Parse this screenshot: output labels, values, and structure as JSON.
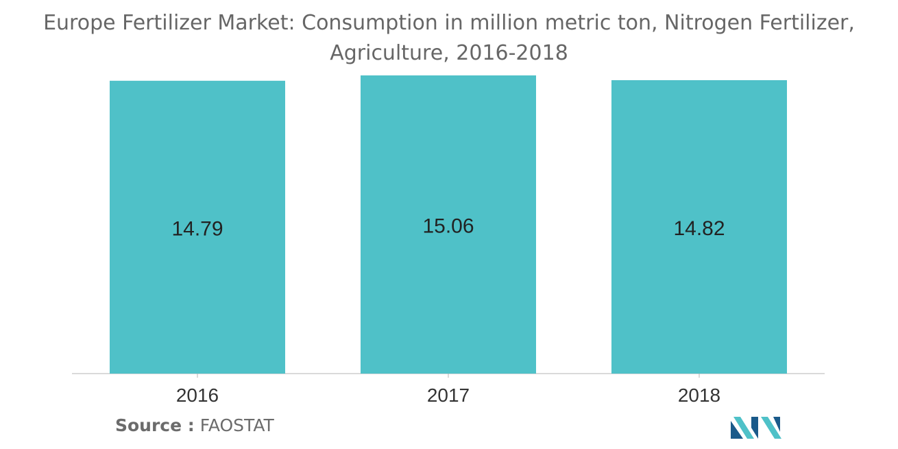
{
  "title_lines": [
    "Europe Fertilizer Market: Consumption in million metric ton, Nitrogen Fertilizer,",
    "Agriculture, 2016-2018"
  ],
  "source": {
    "label": "Source :",
    "text": "FAOSTAT"
  },
  "colors": {
    "bar": "#4fc1c8",
    "axis": "#b5b5b5",
    "text": "#222222",
    "logo_dark": "#1a5a8a",
    "logo_light": "#4fc1c8"
  },
  "logo": {
    "icon": "mordor-intelligence-logo-icon"
  },
  "chart_data": {
    "type": "bar",
    "title": "Europe Fertilizer Market: Consumption in million metric ton, Nitrogen Fertilizer, Agriculture, 2016-2018",
    "categories": [
      "2016",
      "2017",
      "2018"
    ],
    "values": [
      14.79,
      15.06,
      14.82
    ],
    "value_labels": [
      "14.79",
      "15.06",
      "14.82"
    ],
    "xlabel": "",
    "ylabel": "",
    "ylim": [
      0,
      15.06
    ],
    "grid": false,
    "legend": "none"
  }
}
